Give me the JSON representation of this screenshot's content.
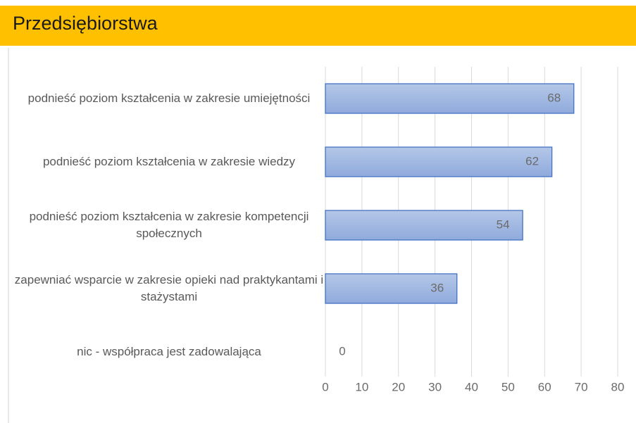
{
  "chart_data": {
    "type": "bar",
    "orientation": "horizontal",
    "title": "Przedsiębiorstwa",
    "categories": [
      "podnieść poziom kształcenia w zakresie umiejętności",
      "podnieść poziom kształcenia w zakresie wiedzy",
      "podnieść poziom kształcenia w zakresie kompetencji społecznych",
      "zapewniać wsparcie w zakresie opieki nad praktykantami i stażystami",
      "nic - współpraca jest zadowalająca"
    ],
    "values": [
      68,
      62,
      54,
      36,
      0
    ],
    "color": "#8faadc",
    "xlim": [
      0,
      80
    ],
    "xticks": [
      0,
      10,
      20,
      30,
      40,
      50,
      60,
      70,
      80
    ],
    "grid": true
  }
}
